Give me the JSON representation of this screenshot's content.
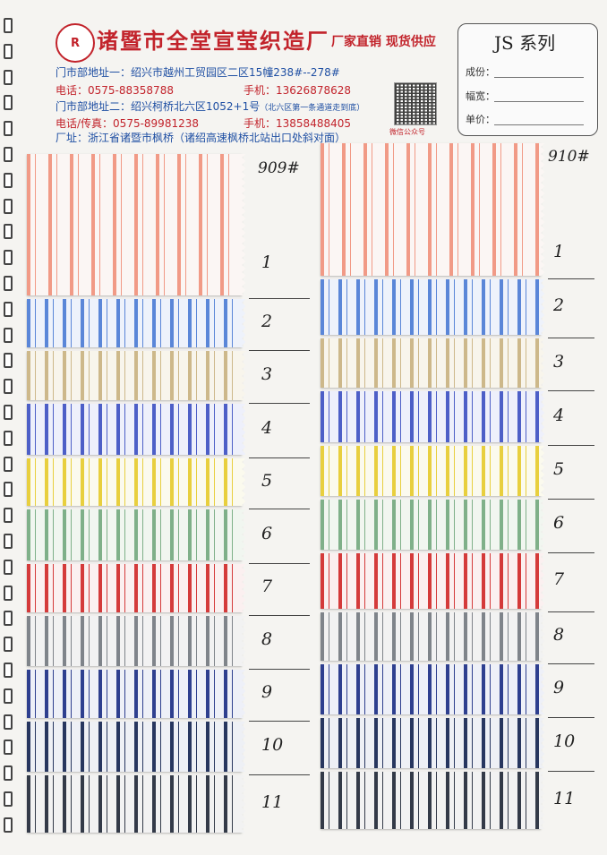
{
  "header": {
    "logo_text": "R",
    "company_name": "诸暨市全堂宣莹织造厂",
    "slogan": "厂家直销 现货供应",
    "address_1_label": "门市部地址一：",
    "address_1": "绍兴市越州工贸园区二区15幢238#--278#",
    "phone_label": "电话：",
    "phone": "0575-88358788",
    "mobile_label": "手机：",
    "mobile": "13626878628",
    "address_2_label": "门市部地址二：",
    "address_2": "绍兴柯桥北六区1052+1号",
    "address_2_note": "（北六区第一条通道走到底）",
    "fax_label": "电话/传真：",
    "fax": "0575-89981238",
    "mobile_2_label": "手机：",
    "mobile_2": "13858488405",
    "factory_label": "厂址：",
    "factory": "浙江省诸暨市枫桥（诸绍高速枫桥北站出口处斜对面）",
    "qr_label": "微信公众号"
  },
  "series_box": {
    "title": "JS 系列",
    "fields": [
      "成份：",
      "幅宽：",
      "单价："
    ]
  },
  "columns": [
    {
      "code": "909#",
      "swatches": [
        {
          "number": "1",
          "base": "#fbf6f4",
          "stripe": "#f19a86"
        },
        {
          "number": "2",
          "base": "#eef2fb",
          "stripe": "#5a86d8"
        },
        {
          "number": "3",
          "base": "#f8f5ec",
          "stripe": "#cdb88a"
        },
        {
          "number": "4",
          "base": "#eef0fb",
          "stripe": "#4d5fc7"
        },
        {
          "number": "5",
          "base": "#fbfaee",
          "stripe": "#e8cf3e"
        },
        {
          "number": "6",
          "base": "#f1f6f0",
          "stripe": "#7fb089"
        },
        {
          "number": "7",
          "base": "#fbf0f0",
          "stripe": "#d43a3a"
        },
        {
          "number": "8",
          "base": "#f2f2f2",
          "stripe": "#7f848a"
        },
        {
          "number": "9",
          "base": "#eef0f8",
          "stripe": "#2e3f8f"
        },
        {
          "number": "10",
          "base": "#eef0f5",
          "stripe": "#27365f"
        },
        {
          "number": "11",
          "base": "#f2f2f2",
          "stripe": "#333a48"
        }
      ]
    },
    {
      "code": "910#",
      "swatches": [
        {
          "number": "1",
          "base": "#fbf6f4",
          "stripe": "#f19a86"
        },
        {
          "number": "2",
          "base": "#eef2fb",
          "stripe": "#5a86d8"
        },
        {
          "number": "3",
          "base": "#f8f5ec",
          "stripe": "#cdb88a"
        },
        {
          "number": "4",
          "base": "#eef0fb",
          "stripe": "#4d5fc7"
        },
        {
          "number": "5",
          "base": "#fbfaee",
          "stripe": "#e8cf3e"
        },
        {
          "number": "6",
          "base": "#f1f6f0",
          "stripe": "#7fb089"
        },
        {
          "number": "7",
          "base": "#fbf0f0",
          "stripe": "#d43a3a"
        },
        {
          "number": "8",
          "base": "#f2f2f2",
          "stripe": "#7f848a"
        },
        {
          "number": "9",
          "base": "#eef0f8",
          "stripe": "#2e3f8f"
        },
        {
          "number": "10",
          "base": "#eef0f5",
          "stripe": "#27365f"
        },
        {
          "number": "11",
          "base": "#f2f2f2",
          "stripe": "#333a48"
        }
      ]
    }
  ],
  "colors": {
    "brand_red": "#c2232b",
    "address_blue": "#1f4fa3"
  }
}
